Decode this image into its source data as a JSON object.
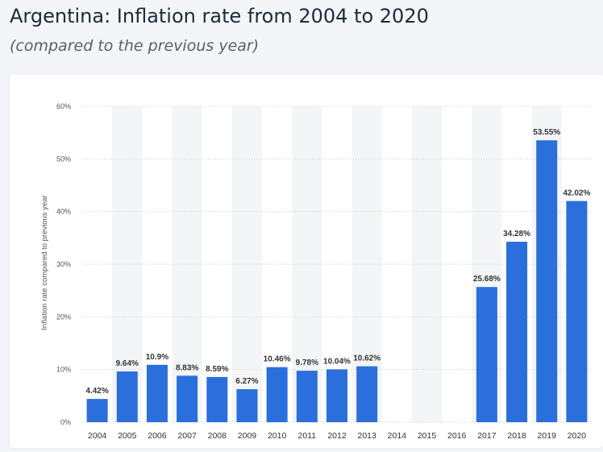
{
  "header": {
    "title": "Argentina: Inflation rate from 2004 to 2020",
    "subtitle": "(compared to the previous year)"
  },
  "colors": {
    "bar": "#2a6fdb",
    "band": "#f4f5f7",
    "grid": "#c9ccd1",
    "text": "#333333"
  },
  "chart_data": {
    "type": "bar",
    "title": "",
    "xlabel": "",
    "ylabel": "Inflation rate compared to previous year",
    "ylim": [
      0,
      60
    ],
    "yticks": [
      0,
      10,
      20,
      30,
      40,
      50,
      60
    ],
    "ytick_labels": [
      "0%",
      "10%",
      "20%",
      "30%",
      "40%",
      "50%",
      "60%"
    ],
    "grid": true,
    "categories": [
      "2004",
      "2005",
      "2006",
      "2007",
      "2008",
      "2009",
      "2010",
      "2011",
      "2012",
      "2013",
      "2014",
      "2015",
      "2016",
      "2017",
      "2018",
      "2019",
      "2020"
    ],
    "values": [
      4.42,
      9.64,
      10.9,
      8.83,
      8.59,
      6.27,
      10.46,
      9.78,
      10.04,
      10.62,
      null,
      null,
      null,
      25.68,
      34.28,
      53.55,
      42.02
    ],
    "data_labels": [
      "4.42%",
      "9.64%",
      "10.9%",
      "8.83%",
      "8.59%",
      "6.27%",
      "10.46%",
      "9.78%",
      "10.04%",
      "10.62%",
      "",
      "",
      "",
      "25.68%",
      "34.28%",
      "53.55%",
      "42.02%"
    ]
  }
}
